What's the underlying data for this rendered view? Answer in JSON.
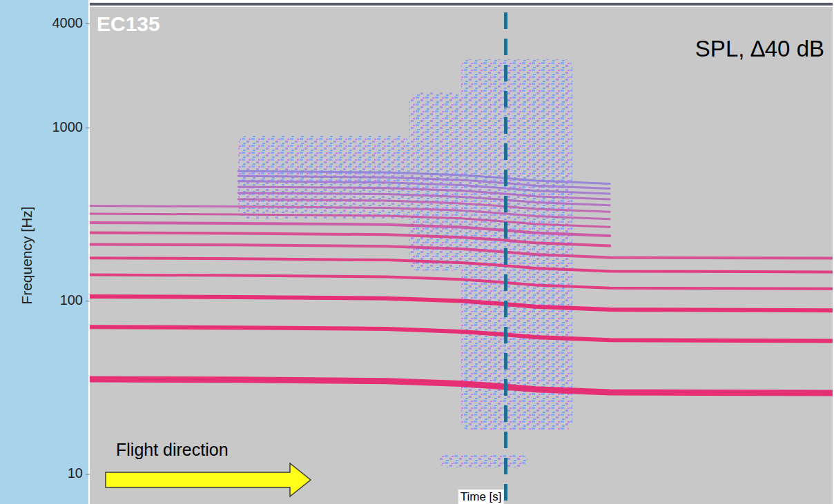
{
  "chart_data": {
    "type": "line",
    "title": "EC135",
    "ylabel": "Frequency [Hz]",
    "xlabel": "Time [s]",
    "annotations": [
      "SPL, ∆40 dB",
      "Flight direction"
    ],
    "log": "y",
    "grid": false,
    "tick_labels": "y",
    "xlim": [
      0,
      100
    ],
    "ylim": [
      6.75,
      5000
    ],
    "yticks": [
      10,
      100,
      1000,
      4000
    ],
    "vertical_line_x": 56,
    "x": [
      0,
      20,
      40,
      50,
      55,
      60,
      70,
      100
    ],
    "series": [
      {
        "color": "#e8206a",
        "values": [
          35.5,
          35.2,
          34.6,
          33.4,
          32.3,
          31.0,
          29.8,
          29.5
        ]
      },
      {
        "color": "#e8206a",
        "values": [
          71,
          70.4,
          69.2,
          66.8,
          64.6,
          62,
          59.6,
          59
        ]
      },
      {
        "color": "#e8206a",
        "values": [
          106.5,
          105.6,
          103.8,
          100.2,
          96.9,
          93,
          89.4,
          88.5
        ]
      },
      {
        "color": "#e2307a",
        "values": [
          142,
          140.8,
          138.4,
          133.6,
          129.2,
          124,
          119.2,
          118
        ]
      },
      {
        "color": "#e2307a",
        "values": [
          177.5,
          176,
          173,
          167,
          161.5,
          155,
          149,
          147.5
        ]
      },
      {
        "color": "#d8408c",
        "values": [
          213,
          211.2,
          207.6,
          200.4,
          193.8,
          186,
          178.8,
          177
        ]
      },
      {
        "color": "#d8408c",
        "values": [
          248.5,
          246.4,
          242.2,
          233.8,
          226.1,
          217,
          208.6,
          null
        ]
      },
      {
        "color": "#cc50a0",
        "values": [
          284,
          281.6,
          276.8,
          267.2,
          258.4,
          248,
          238.4,
          null
        ]
      },
      {
        "color": "#cc50a0",
        "values": [
          319.5,
          316.8,
          311.4,
          300.6,
          290.7,
          279,
          268.2,
          null
        ]
      },
      {
        "color": "#c060b0",
        "values": [
          355,
          352,
          346,
          334,
          323,
          310,
          298,
          null
        ]
      },
      {
        "color": "#c060b0",
        "values": [
          null,
          387.2,
          380.6,
          367.4,
          355.3,
          341,
          327.8,
          null
        ]
      },
      {
        "color": "#b06cc0",
        "values": [
          null,
          422.4,
          415.2,
          400.8,
          387.6,
          372,
          357.6,
          null
        ]
      },
      {
        "color": "#b06cc0",
        "values": [
          null,
          457.6,
          449.8,
          434.2,
          419.9,
          403,
          387.4,
          null
        ]
      },
      {
        "color": "#a078d0",
        "values": [
          null,
          492.8,
          484.4,
          467.6,
          452.2,
          434,
          417.2,
          null
        ]
      },
      {
        "color": "#a078d0",
        "values": [
          null,
          528,
          519,
          501,
          484.5,
          465,
          447,
          null
        ]
      },
      {
        "color": "#9080d8",
        "values": [
          null,
          563.2,
          553.6,
          534.4,
          516.8,
          496,
          476.8,
          null
        ]
      }
    ],
    "broadband_noise": [
      {
        "x": [
          50,
          65
        ],
        "frequency": [
          18,
          2500
        ]
      },
      {
        "x": [
          43,
          50
        ],
        "frequency": [
          150,
          1600
        ]
      },
      {
        "x": [
          20,
          43
        ],
        "frequency": [
          300,
          900
        ]
      },
      {
        "x": [
          47,
          59
        ],
        "frequency": [
          11,
          13
        ]
      }
    ]
  }
}
